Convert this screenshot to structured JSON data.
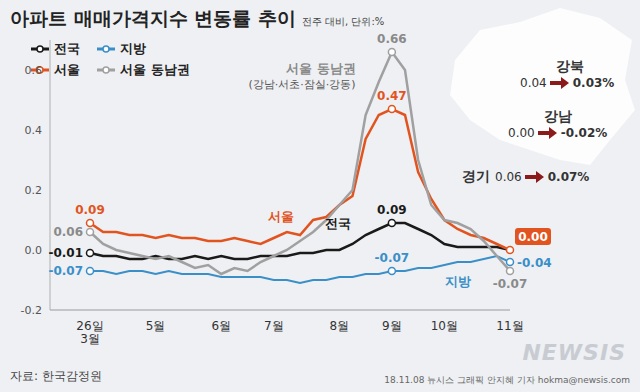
{
  "chart_data": {
    "type": "line",
    "title": "아파트 매매가격지수 변동률 추이",
    "subtitle": "전주 대비, 단위:%",
    "categories": [
      "26일\n3월",
      null,
      null,
      null,
      null,
      "5월",
      null,
      null,
      null,
      null,
      "6월",
      null,
      null,
      null,
      "7월",
      null,
      null,
      null,
      null,
      "8월",
      null,
      null,
      null,
      "9월",
      null,
      null,
      null,
      "10월",
      null,
      null,
      null,
      null,
      "11월"
    ],
    "series": [
      {
        "name": "전국",
        "color": "#1a1a1a",
        "values": [
          -0.01,
          -0.02,
          -0.02,
          -0.03,
          -0.03,
          -0.02,
          -0.03,
          -0.03,
          -0.02,
          -0.03,
          -0.02,
          -0.03,
          -0.03,
          -0.02,
          -0.02,
          -0.02,
          -0.01,
          -0.01,
          0.0,
          0.0,
          0.02,
          0.05,
          0.07,
          0.09,
          0.09,
          0.07,
          0.05,
          0.02,
          0.01,
          0.01,
          0.01,
          0.01,
          0.0
        ],
        "value_labels": [
          "-0.01",
          null,
          null,
          null,
          null,
          null,
          null,
          null,
          null,
          null,
          null,
          null,
          null,
          null,
          null,
          null,
          null,
          null,
          null,
          null,
          null,
          null,
          null,
          "0.09",
          null,
          null,
          null,
          null,
          null,
          null,
          null,
          null,
          null
        ]
      },
      {
        "name": "지방",
        "color": "#3a8fc8",
        "values": [
          -0.07,
          -0.07,
          -0.08,
          -0.07,
          -0.07,
          -0.08,
          -0.07,
          -0.08,
          -0.08,
          -0.08,
          -0.09,
          -0.09,
          -0.09,
          -0.09,
          -0.1,
          -0.1,
          -0.11,
          -0.1,
          -0.1,
          -0.09,
          -0.09,
          -0.08,
          -0.08,
          -0.07,
          -0.07,
          -0.06,
          -0.06,
          -0.05,
          -0.04,
          -0.04,
          -0.03,
          -0.02,
          -0.04
        ],
        "value_labels": [
          "-0.07",
          null,
          null,
          null,
          null,
          null,
          null,
          null,
          null,
          null,
          null,
          null,
          null,
          null,
          null,
          null,
          null,
          null,
          null,
          null,
          null,
          null,
          null,
          "-0.07",
          null,
          null,
          null,
          null,
          null,
          null,
          null,
          null,
          "-0.04"
        ]
      },
      {
        "name": "서울",
        "color": "#e2541f",
        "values": [
          0.09,
          0.06,
          0.06,
          0.05,
          0.05,
          0.04,
          0.05,
          0.04,
          0.04,
          0.03,
          0.03,
          0.04,
          0.03,
          0.02,
          0.04,
          0.06,
          0.05,
          0.1,
          0.11,
          0.15,
          0.18,
          0.37,
          0.45,
          0.47,
          0.45,
          0.26,
          0.17,
          0.1,
          0.07,
          0.05,
          0.04,
          0.02,
          0.0
        ],
        "value_labels": [
          "0.09",
          null,
          null,
          null,
          null,
          null,
          null,
          null,
          null,
          null,
          null,
          null,
          null,
          null,
          null,
          null,
          null,
          null,
          null,
          null,
          null,
          null,
          null,
          "0.47",
          null,
          null,
          null,
          null,
          null,
          null,
          null,
          null,
          "0.00"
        ]
      },
      {
        "name": "서울 동남권",
        "color": "#a0a0a0",
        "values": [
          0.06,
          0.02,
          0.0,
          -0.01,
          -0.02,
          -0.03,
          -0.02,
          -0.04,
          -0.06,
          -0.05,
          -0.08,
          -0.06,
          -0.07,
          -0.04,
          -0.02,
          0.0,
          0.03,
          0.06,
          0.1,
          0.15,
          0.2,
          0.45,
          0.56,
          0.66,
          0.6,
          0.3,
          0.15,
          0.1,
          0.09,
          0.07,
          0.03,
          -0.02,
          -0.07
        ],
        "value_labels": [
          "0.06",
          null,
          null,
          null,
          null,
          null,
          null,
          null,
          null,
          null,
          null,
          null,
          null,
          null,
          null,
          null,
          null,
          null,
          null,
          null,
          null,
          null,
          null,
          "0.66",
          null,
          null,
          null,
          null,
          null,
          null,
          null,
          null,
          "-0.07"
        ]
      }
    ],
    "annotations": [
      "(강남·서초·잠실·강동)"
    ],
    "ylim": [
      -0.2,
      0.7
    ],
    "yticks": [
      -0.2,
      {
        "value": 0,
        "label": "0.0"
      },
      0.2,
      0.4,
      0.6
    ],
    "grid": false,
    "legend": "upper left",
    "map_inset": [
      {
        "region": "강북",
        "before": "0.04",
        "after": "0.03%"
      },
      {
        "region": "강남",
        "before": "0.00",
        "after": "-0.02%"
      },
      {
        "region": "경기",
        "before": "0.06",
        "after": "0.07%"
      }
    ],
    "source": "자료: 한국감정원",
    "credit": "18.11.08 뉴시스 그래픽 안지혜 기자 hokma@newsis.com",
    "logo": "NEWSIS"
  }
}
